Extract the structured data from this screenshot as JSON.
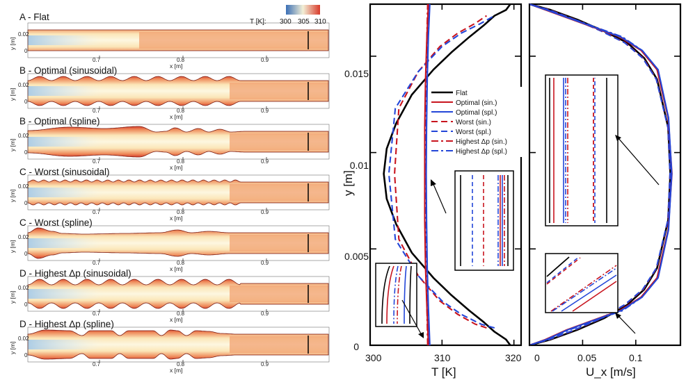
{
  "colorbar": {
    "label": "T [K]:",
    "ticks": [
      "300",
      "305",
      "310"
    ],
    "colors": [
      "#3b6fb6",
      "#f2efd6",
      "#d83a2a"
    ]
  },
  "chart_data": [
    {
      "type": "heatmap",
      "title": "A - Flat",
      "shape": "flat",
      "xlabel": "x [m]",
      "ylabel": "y [m]",
      "xticks": [
        "0.7",
        "0.8",
        "0.9"
      ],
      "yticks": [
        "0.02",
        "0"
      ]
    },
    {
      "type": "heatmap",
      "title": "B - Optimal (sinusoidal)",
      "shape": "sinusoidal",
      "waves": 9,
      "xlabel": "x [m]",
      "ylabel": "y [m]",
      "xticks": [
        "0.7",
        "0.8",
        "0.9"
      ],
      "yticks": [
        "0.02",
        "0"
      ]
    },
    {
      "type": "heatmap",
      "title": "B - Optimal (spline)",
      "shape": "spline",
      "xlabel": "x [m]",
      "ylabel": "y [m]",
      "xticks": [
        "0.7",
        "0.8",
        "0.9"
      ],
      "yticks": [
        "0.02",
        "0"
      ]
    },
    {
      "type": "heatmap",
      "title": "C - Worst (sinusoidal)",
      "shape": "sinusoidal",
      "waves": 20,
      "xlabel": "x [m]",
      "ylabel": "y [m]",
      "xticks": [
        "0.7",
        "0.8",
        "0.9"
      ],
      "yticks": [
        "0.02",
        "0"
      ]
    },
    {
      "type": "heatmap",
      "title": "C - Worst (spline)",
      "shape": "spline",
      "xlabel": "x [m]",
      "ylabel": "y [m]",
      "xticks": [
        "0.7",
        "0.8",
        "0.9"
      ],
      "yticks": [
        "0.02",
        "0"
      ]
    },
    {
      "type": "heatmap",
      "title": "D - Highest Δp (sinusoidal)",
      "shape": "sinusoidal",
      "waves": 9,
      "xlabel": "x [m]",
      "ylabel": "y [m]",
      "xticks": [
        "0.7",
        "0.8",
        "0.9"
      ],
      "yticks": [
        "0.02",
        "0"
      ]
    },
    {
      "type": "heatmap",
      "title": "D - Highest Δp (spline)",
      "shape": "spline",
      "xlabel": "x [m]",
      "ylabel": "y [m]",
      "xticks": [
        "0.7",
        "0.8",
        "0.9"
      ],
      "yticks": [
        "0.02",
        "0"
      ]
    },
    {
      "type": "line",
      "title": "",
      "xlabel": "T [K]",
      "ylabel": "y [m]",
      "xlim": [
        300,
        321
      ],
      "ylim": [
        0,
        0.0177
      ],
      "xticks": [
        300,
        310,
        320
      ],
      "yticks": [
        0,
        0.005,
        0.01,
        0.015
      ],
      "ytick_labels": [
        "0",
        "0.005",
        "0.01",
        "0.015"
      ],
      "series": [
        {
          "name": "Flat",
          "color": "#000000",
          "dash": "solid",
          "x": [
            319.5,
            318.9,
            317.3,
            315.8,
            313.8,
            311.3,
            308.8,
            305.8,
            303.6,
            302.3,
            301.9,
            302.3,
            303.6,
            305.8,
            308.8,
            311.3,
            313.8,
            315.8,
            317.3,
            318.9,
            319.5
          ],
          "y": [
            0,
            0.0003,
            0.0007,
            0.0012,
            0.0018,
            0.0026,
            0.0035,
            0.0048,
            0.0063,
            0.0076,
            0.0089,
            0.0102,
            0.0115,
            0.013,
            0.0143,
            0.0152,
            0.016,
            0.0166,
            0.0171,
            0.0174,
            0.0177
          ]
        },
        {
          "name": "Optimal (sin.)",
          "color": "#c8141e",
          "dash": "solid",
          "x": [
            308.1,
            307.9,
            307.7,
            307.6,
            307.6,
            307.6,
            307.7,
            307.9,
            308.1
          ],
          "y": [
            0,
            0.002,
            0.004,
            0.0065,
            0.0089,
            0.0113,
            0.0138,
            0.016,
            0.0177
          ]
        },
        {
          "name": "Optimal (spl.)",
          "color": "#2346d8",
          "dash": "solid",
          "x": [
            308.3,
            308.1,
            307.95,
            307.85,
            307.8,
            307.85,
            307.95,
            308.1,
            308.3
          ],
          "y": [
            0,
            0.002,
            0.004,
            0.0065,
            0.0089,
            0.0113,
            0.0138,
            0.016,
            0.0177
          ]
        },
        {
          "name": "Worst (sin.)",
          "color": "#c8141e",
          "dash": "dash",
          "x": [
            316.2,
            314.6,
            312.2,
            309.7,
            306.7,
            304.0,
            303.4,
            304.0,
            306.7,
            309.7,
            312.2,
            314.6,
            316.2
          ],
          "y": [
            0.0009,
            0.0011,
            0.0016,
            0.0023,
            0.0036,
            0.0055,
            0.0089,
            0.0123,
            0.0142,
            0.0155,
            0.0162,
            0.0167,
            0.0171
          ]
        },
        {
          "name": "Worst (spl.)",
          "color": "#2346d8",
          "dash": "dash",
          "x": [
            317.3,
            315.4,
            312.7,
            310.0,
            306.7,
            303.5,
            302.6,
            303.5,
            306.7,
            310.0,
            312.7,
            315.4,
            317.3
          ],
          "y": [
            0.0009,
            0.0011,
            0.0016,
            0.0023,
            0.0036,
            0.0055,
            0.0089,
            0.0123,
            0.0142,
            0.0155,
            0.0162,
            0.0167,
            0.0171
          ]
        },
        {
          "name": "Highest Δp (sin.)",
          "color": "#c8141e",
          "dash": "dashdot",
          "x": [
            308.0,
            307.9,
            307.8,
            307.7,
            307.7,
            307.7,
            307.8,
            307.9,
            308.0
          ],
          "y": [
            0,
            0.002,
            0.004,
            0.0065,
            0.0089,
            0.0113,
            0.0138,
            0.016,
            0.0177
          ]
        },
        {
          "name": "Highest Δp (spl.)",
          "color": "#2346d8",
          "dash": "dashdot",
          "x": [
            308.2,
            308.05,
            307.9,
            307.8,
            307.75,
            307.8,
            307.9,
            308.05,
            308.2
          ],
          "y": [
            0,
            0.002,
            0.004,
            0.0065,
            0.0089,
            0.0113,
            0.0138,
            0.016,
            0.0177
          ]
        }
      ]
    },
    {
      "type": "line",
      "title": "",
      "xlabel": "U_x [m/s]",
      "ylabel": "",
      "xlim": [
        0,
        0.142
      ],
      "ylim": [
        0,
        0.0177
      ],
      "xticks": [
        0,
        0.05,
        0.1
      ],
      "xtick_labels": [
        "0",
        "0.05",
        "0.1"
      ],
      "series": [
        {
          "name": "Flat",
          "color": "#000000",
          "dash": "solid",
          "x": [
            0,
            0.02,
            0.045,
            0.07,
            0.092,
            0.108,
            0.12,
            0.1305,
            0.1325,
            0.1305,
            0.12,
            0.108,
            0.092,
            0.07,
            0.045,
            0.02,
            0
          ],
          "y": [
            0,
            0.0003,
            0.0008,
            0.0014,
            0.0021,
            0.0029,
            0.004,
            0.0065,
            0.0089,
            0.0113,
            0.0138,
            0.0149,
            0.0157,
            0.0163,
            0.0169,
            0.0174,
            0.0177
          ]
        },
        {
          "name": "Optimal (sin.)",
          "color": "#c8141e",
          "dash": "solid",
          "x": [
            0,
            0.015,
            0.035,
            0.06,
            0.085,
            0.105,
            0.12,
            0.1305,
            0.134,
            0.1305,
            0.12,
            0.105,
            0.085,
            0.06,
            0.035,
            0.015,
            0
          ],
          "y": [
            0,
            0.0003,
            0.0008,
            0.0013,
            0.0018,
            0.0025,
            0.0035,
            0.006,
            0.0089,
            0.0118,
            0.0143,
            0.0153,
            0.016,
            0.0165,
            0.017,
            0.0174,
            0.0177
          ]
        },
        {
          "name": "Optimal (spl.)",
          "color": "#2346d8",
          "dash": "solid",
          "x": [
            0,
            0.016,
            0.036,
            0.061,
            0.086,
            0.106,
            0.121,
            0.1308,
            0.1338,
            0.1308,
            0.121,
            0.106,
            0.086,
            0.061,
            0.036,
            0.016,
            0
          ],
          "y": [
            0,
            0.0003,
            0.0008,
            0.0013,
            0.0018,
            0.0025,
            0.0035,
            0.006,
            0.0089,
            0.0118,
            0.0143,
            0.0153,
            0.016,
            0.0165,
            0.017,
            0.0174,
            0.0177
          ]
        },
        {
          "name": "Worst (sin.)",
          "color": "#c8141e",
          "dash": "dash",
          "x": [
            0,
            0.019,
            0.043,
            0.068,
            0.09,
            0.107,
            0.1195,
            0.1302,
            0.1322,
            0.1302,
            0.1195,
            0.107,
            0.09,
            0.068,
            0.043,
            0.019,
            0
          ],
          "y": [
            0,
            0.0003,
            0.0008,
            0.0014,
            0.0021,
            0.0029,
            0.004,
            0.0065,
            0.0089,
            0.0113,
            0.0138,
            0.0149,
            0.0157,
            0.0163,
            0.0169,
            0.0174,
            0.0177
          ]
        },
        {
          "name": "Worst (spl.)",
          "color": "#2346d8",
          "dash": "dash",
          "x": [
            0,
            0.0185,
            0.0425,
            0.0675,
            0.0895,
            0.1065,
            0.1193,
            0.1302,
            0.1322,
            0.1302,
            0.1193,
            0.1065,
            0.0895,
            0.0675,
            0.0425,
            0.0185,
            0
          ],
          "y": [
            0,
            0.0003,
            0.0008,
            0.0014,
            0.0021,
            0.0029,
            0.004,
            0.0065,
            0.0089,
            0.0113,
            0.0138,
            0.0149,
            0.0157,
            0.0163,
            0.0169,
            0.0174,
            0.0177
          ]
        },
        {
          "name": "Highest Δp (sin.)",
          "color": "#c8141e",
          "dash": "dashdot",
          "x": [
            0,
            0.016,
            0.037,
            0.062,
            0.087,
            0.1055,
            0.1205,
            0.1306,
            0.1336,
            0.1306,
            0.1205,
            0.1055,
            0.087,
            0.062,
            0.037,
            0.016,
            0
          ],
          "y": [
            0,
            0.0003,
            0.0008,
            0.0013,
            0.0018,
            0.0025,
            0.0035,
            0.006,
            0.0089,
            0.0118,
            0.0143,
            0.0153,
            0.016,
            0.0165,
            0.017,
            0.0174,
            0.0177
          ]
        },
        {
          "name": "Highest Δp (spl.)",
          "color": "#2346d8",
          "dash": "dashdot",
          "x": [
            0,
            0.0165,
            0.0375,
            0.0625,
            0.0875,
            0.106,
            0.1208,
            0.1307,
            0.1337,
            0.1307,
            0.1208,
            0.106,
            0.0875,
            0.0625,
            0.0375,
            0.0165,
            0
          ],
          "y": [
            0,
            0.0003,
            0.0008,
            0.0013,
            0.0018,
            0.0025,
            0.0035,
            0.006,
            0.0089,
            0.0118,
            0.0143,
            0.0153,
            0.016,
            0.0165,
            0.017,
            0.0174,
            0.0177
          ]
        }
      ]
    }
  ]
}
